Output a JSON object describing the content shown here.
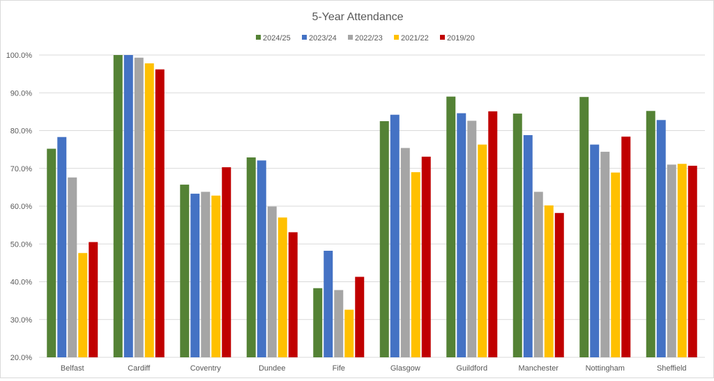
{
  "chart_data": {
    "type": "bar",
    "title": "5-Year Attendance",
    "xlabel": "",
    "ylabel": "",
    "ylim": [
      20,
      100
    ],
    "yticks": [
      "20.0%",
      "30.0%",
      "40.0%",
      "50.0%",
      "60.0%",
      "70.0%",
      "80.0%",
      "90.0%",
      "100.0%"
    ],
    "grid": true,
    "legend_position": "top",
    "categories": [
      "Belfast",
      "Cardiff",
      "Coventry",
      "Dundee",
      "Fife",
      "Glasgow",
      "Guildford",
      "Manchester",
      "Nottingham",
      "Sheffield"
    ],
    "series": [
      {
        "name": "2024/25",
        "color": "#548235",
        "values": [
          75.2,
          100,
          65.7,
          72.9,
          38.3,
          82.5,
          89.0,
          84.5,
          88.9,
          85.2
        ]
      },
      {
        "name": "2023/24",
        "color": "#4472C4",
        "values": [
          78.3,
          100,
          63.3,
          72.1,
          48.2,
          84.2,
          84.6,
          78.8,
          76.3,
          82.8
        ]
      },
      {
        "name": "2022/23",
        "color": "#A5A5A5",
        "values": [
          67.6,
          99.3,
          63.8,
          59.9,
          37.8,
          75.4,
          82.6,
          63.8,
          74.4,
          71.0
        ]
      },
      {
        "name": "2021/22",
        "color": "#FFC000",
        "values": [
          47.6,
          97.8,
          62.8,
          57.0,
          32.6,
          69.0,
          76.3,
          60.2,
          68.9,
          71.2
        ]
      },
      {
        "name": "2019/20",
        "color": "#C00000",
        "values": [
          50.5,
          96.2,
          70.3,
          53.1,
          41.3,
          73.1,
          85.1,
          58.2,
          78.4,
          70.7
        ]
      }
    ]
  }
}
